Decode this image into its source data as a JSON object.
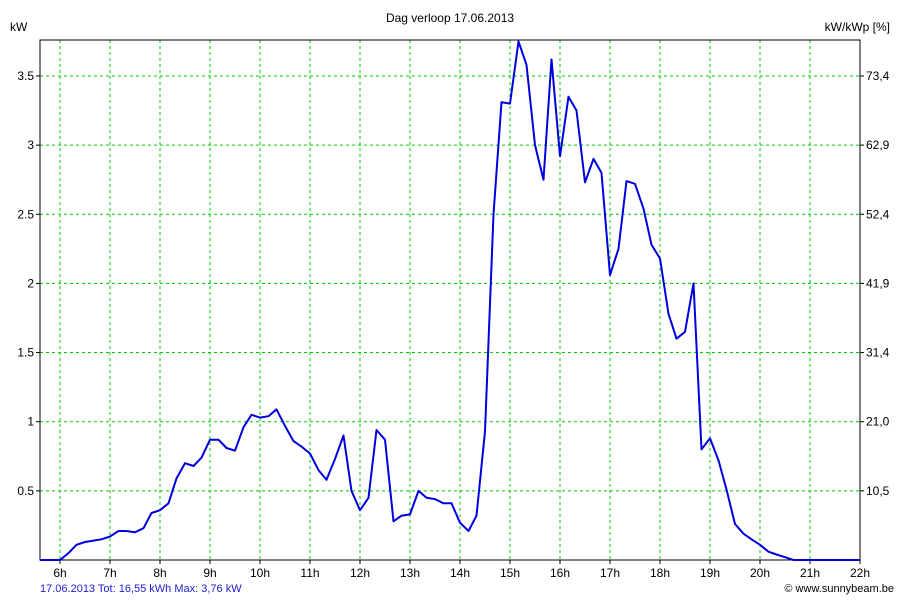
{
  "chart_data": {
    "type": "line",
    "title": "Dag  verloop 17.06.2013",
    "ylabel_left": "kW",
    "ylabel_right": "kW/kWp [%]",
    "x_ticks": [
      "6h",
      "7h",
      "8h",
      "9h",
      "10h",
      "11h",
      "12h",
      "13h",
      "14h",
      "15h",
      "16h",
      "17h",
      "18h",
      "19h",
      "20h",
      "21h",
      "22h"
    ],
    "y_ticks": [
      "0.5",
      "1",
      "1.5",
      "2",
      "2.5",
      "3",
      "3.5"
    ],
    "y_tick_values": [
      0.5,
      1,
      1.5,
      2,
      2.5,
      3,
      3.5
    ],
    "y_right_ticks": [
      "10,5",
      "21,0",
      "31,4",
      "41,9",
      "52,4",
      "62,9",
      "73,4"
    ],
    "xlim": [
      5.6,
      22
    ],
    "ylim": [
      0,
      3.76
    ],
    "grid": true,
    "line_color": "#0000dd",
    "grid_color": "#00cc00",
    "series": [
      {
        "x": [
          5.6,
          6.0,
          6.17,
          6.33,
          6.5,
          6.67,
          6.83,
          7.0,
          7.17,
          7.33,
          7.5,
          7.67,
          7.83,
          8.0,
          8.17,
          8.33,
          8.5,
          8.67,
          8.83,
          9.0,
          9.17,
          9.33,
          9.5,
          9.67,
          9.83,
          10.0,
          10.17,
          10.33,
          10.5,
          10.67,
          10.83,
          11.0,
          11.17,
          11.33,
          11.5,
          11.67,
          11.83,
          12.0,
          12.17,
          12.33,
          12.5,
          12.67,
          12.83,
          13.0,
          13.17,
          13.33,
          13.5,
          13.67,
          13.83,
          14.0,
          14.17,
          14.33,
          14.5,
          14.67,
          14.83,
          15.0,
          15.17,
          15.33,
          15.5,
          15.67,
          15.83,
          16.0,
          16.17,
          16.33,
          16.5,
          16.67,
          16.83,
          17.0,
          17.17,
          17.33,
          17.5,
          17.67,
          17.83,
          18.0,
          18.17,
          18.33,
          18.5,
          18.67,
          18.83,
          19.0,
          19.17,
          19.33,
          19.5,
          19.67,
          19.83,
          20.0,
          20.17,
          20.33,
          20.5,
          20.67,
          21.0,
          21.5,
          22.0
        ],
        "y": [
          0.0,
          0.0,
          0.05,
          0.11,
          0.13,
          0.14,
          0.15,
          0.17,
          0.21,
          0.21,
          0.2,
          0.23,
          0.34,
          0.36,
          0.41,
          0.59,
          0.7,
          0.68,
          0.74,
          0.87,
          0.87,
          0.81,
          0.79,
          0.96,
          1.05,
          1.03,
          1.04,
          1.09,
          0.97,
          0.86,
          0.82,
          0.77,
          0.65,
          0.58,
          0.73,
          0.9,
          0.5,
          0.36,
          0.45,
          0.94,
          0.87,
          0.28,
          0.32,
          0.33,
          0.5,
          0.45,
          0.44,
          0.41,
          0.41,
          0.27,
          0.21,
          0.32,
          0.93,
          2.5,
          3.31,
          3.3,
          3.75,
          3.58,
          3.0,
          2.75,
          3.62,
          2.92,
          3.35,
          3.25,
          2.73,
          2.9,
          2.8,
          2.06,
          2.25,
          2.74,
          2.72,
          2.54,
          2.28,
          2.18,
          1.78,
          1.6,
          1.65,
          2.0,
          0.8,
          0.88,
          0.72,
          0.51,
          0.26,
          0.19,
          0.15,
          0.11,
          0.06,
          0.04,
          0.02,
          0.0,
          0.0,
          0.0,
          0.0
        ]
      }
    ]
  },
  "footer": {
    "summary": "17.06.2013 Tot: 16,55 kWh Max: 3,76 kW",
    "credit": "© www.sunnybeam.be"
  }
}
